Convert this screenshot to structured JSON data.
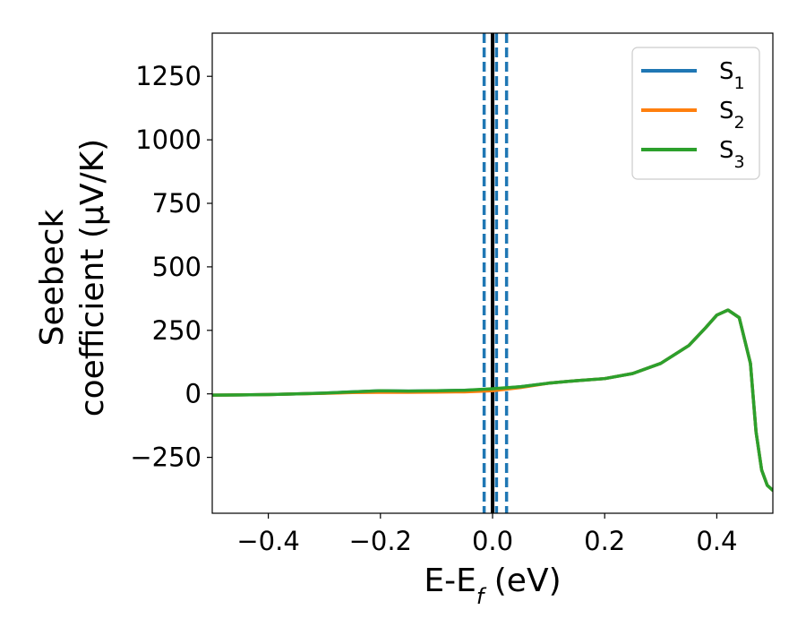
{
  "chart_data": {
    "type": "line",
    "xlabel": "E-E",
    "xlabel_sub": "f",
    "xlabel_unit": "(eV)",
    "ylabel_line1": "Seebeck",
    "ylabel_line2": "coefficient  (μV/K)",
    "xlim": [
      -0.5,
      0.5
    ],
    "ylim": [
      -470,
      1420
    ],
    "xticks": [
      -0.4,
      -0.2,
      0.0,
      0.2,
      0.4
    ],
    "xtick_labels": [
      "−0.4",
      "−0.2",
      "0.0",
      "0.2",
      "0.4"
    ],
    "yticks": [
      -250,
      0,
      250,
      500,
      750,
      1000,
      1250
    ],
    "ytick_labels": [
      "−250",
      "0",
      "250",
      "500",
      "750",
      "1000",
      "1250"
    ],
    "grid": false,
    "legend_position": "top-right",
    "vlines": [
      {
        "x": 0.0,
        "style": "solid",
        "color": "#000000"
      },
      {
        "x": -0.015,
        "style": "dashed",
        "color": "#1f77b4"
      },
      {
        "x": 0.007,
        "style": "dashed",
        "color": "#1f77b4"
      },
      {
        "x": 0.025,
        "style": "dashed",
        "color": "#1f77b4"
      }
    ],
    "x": [
      -0.5,
      -0.45,
      -0.4,
      -0.35,
      -0.3,
      -0.25,
      -0.2,
      -0.15,
      -0.1,
      -0.05,
      0.0,
      0.05,
      0.1,
      0.15,
      0.2,
      0.25,
      0.3,
      0.35,
      0.38,
      0.4,
      0.42,
      0.44,
      0.46,
      0.47,
      0.48,
      0.49,
      0.5
    ],
    "series": [
      {
        "name": "S",
        "sub": "1",
        "color": "#1f77b4",
        "values": [
          -5,
          -4,
          -3,
          0,
          3,
          8,
          12,
          11,
          12,
          14,
          18,
          28,
          42,
          52,
          60,
          80,
          120,
          190,
          260,
          310,
          330,
          300,
          120,
          -150,
          -300,
          -360,
          -380
        ]
      },
      {
        "name": "S",
        "sub": "2",
        "color": "#ff7f0e",
        "values": [
          -5,
          -4,
          -3,
          0,
          2,
          5,
          6,
          6,
          7,
          8,
          12,
          25,
          42,
          52,
          60,
          80,
          120,
          190,
          260,
          310,
          330,
          300,
          120,
          -150,
          -300,
          -360,
          -380
        ]
      },
      {
        "name": "S",
        "sub": "3",
        "color": "#2ca02c",
        "values": [
          -5,
          -4,
          -3,
          0,
          3,
          8,
          12,
          11,
          12,
          14,
          20,
          28,
          42,
          52,
          60,
          80,
          120,
          190,
          260,
          310,
          330,
          300,
          120,
          -150,
          -300,
          -360,
          -380
        ]
      }
    ]
  }
}
